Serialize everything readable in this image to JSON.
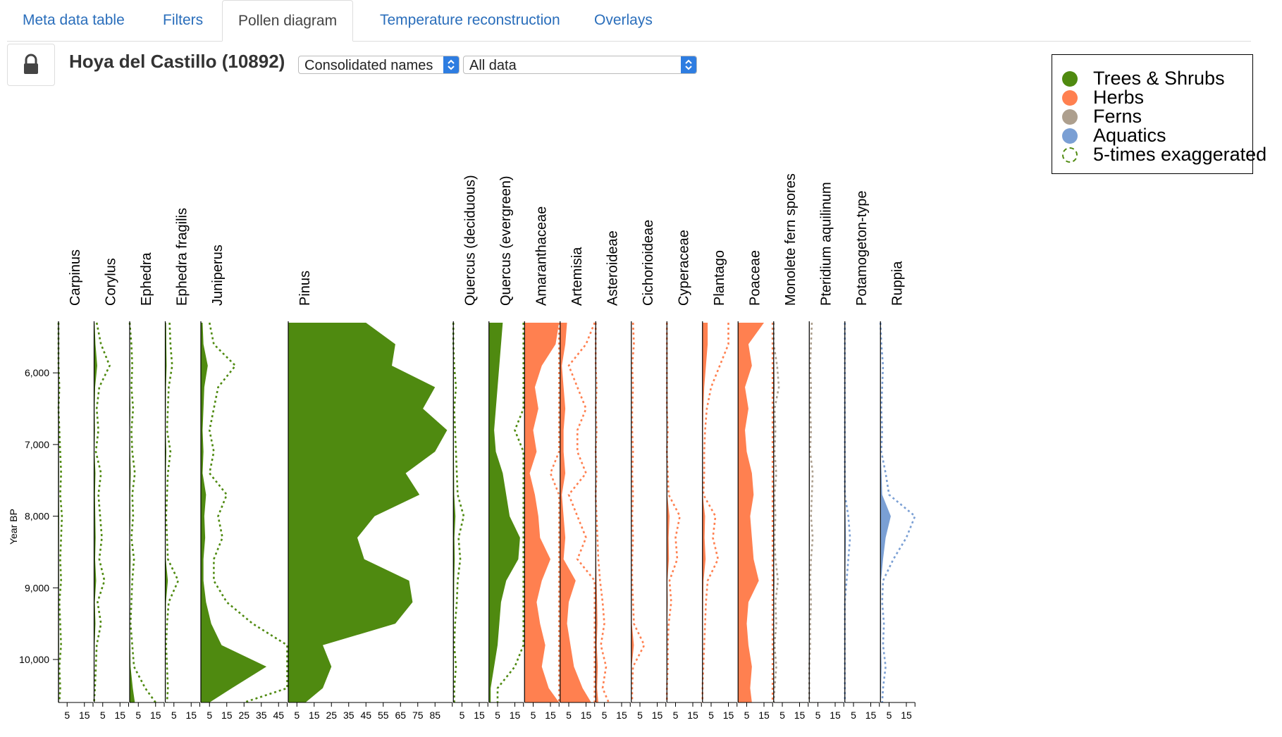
{
  "tabs": [
    {
      "label": "Meta data table",
      "active": false
    },
    {
      "label": "Filters",
      "active": false
    },
    {
      "label": "Pollen diagram",
      "active": true
    },
    {
      "label": "Temperature reconstruction",
      "active": false
    },
    {
      "label": "Overlays",
      "active": false
    }
  ],
  "toolbar": {
    "lock_icon": "lock-icon",
    "site_title": "Hoya del Castillo (10892)",
    "names_select": "Consolidated names",
    "data_select": "All data"
  },
  "legend": {
    "items": [
      {
        "label": "Trees & Shrubs",
        "color": "#4f8a10",
        "style": "filled"
      },
      {
        "label": "Herbs",
        "color": "#ff8050",
        "style": "filled"
      },
      {
        "label": "Ferns",
        "color": "#ad9f8e",
        "style": "filled"
      },
      {
        "label": "Aquatics",
        "color": "#7a9fd4",
        "style": "filled"
      },
      {
        "label": "5-times exaggerated",
        "color": "#4f8a10",
        "style": "dashed"
      }
    ]
  },
  "chart_data": {
    "type": "area",
    "ylabel": "Year BP",
    "y_range": [
      5300,
      10600
    ],
    "y_ticks": [
      6000,
      7000,
      8000,
      9000,
      10000
    ],
    "y_tick_labels": [
      "6,000",
      "7,000",
      "8,000",
      "9,000",
      "10,000"
    ],
    "age": [
      5300,
      5600,
      5900,
      6200,
      6500,
      6800,
      7100,
      7400,
      7700,
      8000,
      8300,
      8600,
      8900,
      9200,
      9500,
      9800,
      10100,
      10400,
      10600
    ],
    "exaggeration": 5,
    "colors": {
      "trees": "#4f8a10",
      "herbs": "#ff8050",
      "ferns": "#ad9f8e",
      "aquatics": "#7a9fd4"
    },
    "series": [
      {
        "name": "Carpinus",
        "group": "trees",
        "max": 20,
        "ticks": [
          5,
          15
        ],
        "exaggerated": true,
        "values": [
          0,
          0,
          0,
          0.1,
          0,
          0.1,
          0.2,
          0.3,
          0.2,
          0.4,
          0.3,
          0.2,
          0.3,
          0.1,
          0.2,
          0.3,
          0.1,
          0.2,
          0.1
        ]
      },
      {
        "name": "Corylus",
        "group": "trees",
        "max": 20,
        "ticks": [
          5,
          15
        ],
        "exaggerated": true,
        "values": [
          0.3,
          0.8,
          1.8,
          0.6,
          0.3,
          0.5,
          0.2,
          0.8,
          0.5,
          0.7,
          0.9,
          0.6,
          1.2,
          0.4,
          0.8,
          0.3,
          0.2,
          0.1,
          0
        ]
      },
      {
        "name": "Ephedra",
        "group": "trees",
        "max": 20,
        "ticks": [
          5,
          15
        ],
        "exaggerated": true,
        "values": [
          0,
          0.2,
          0.3,
          0.2,
          0.4,
          0.2,
          0.3,
          0.6,
          0.3,
          0.4,
          0.2,
          0.5,
          0.3,
          0.2,
          0.1,
          0.3,
          0.5,
          1.8,
          3
        ]
      },
      {
        "name": "Ephedra fragilis",
        "group": "trees",
        "max": 20,
        "ticks": [
          5,
          15
        ],
        "exaggerated": true,
        "values": [
          0.5,
          0.6,
          0.8,
          0.4,
          0.3,
          0.2,
          0.6,
          0.3,
          0.2,
          0.1,
          0.2,
          0.3,
          1.5,
          0.4,
          0.2,
          0.1,
          0.2,
          0.3,
          0.2
        ]
      },
      {
        "name": "Juniperus",
        "group": "trees",
        "max": 50,
        "ticks": [
          5,
          15,
          25,
          35,
          45
        ],
        "exaggerated": true,
        "values": [
          1,
          1.5,
          4,
          2,
          1.5,
          1,
          1.5,
          1,
          3,
          2,
          2.5,
          1.5,
          1.5,
          3,
          6,
          12,
          38,
          18,
          5
        ]
      },
      {
        "name": "Pinus",
        "group": "trees",
        "max": 95,
        "ticks": [
          5,
          15,
          25,
          35,
          45,
          55,
          65,
          75,
          85
        ],
        "exaggerated": false,
        "values": [
          45,
          62,
          60,
          85,
          78,
          92,
          85,
          68,
          76,
          50,
          40,
          44,
          70,
          72,
          62,
          20,
          25,
          20,
          10
        ]
      },
      {
        "name": "Quercus (deciduous)",
        "group": "trees",
        "max": 20,
        "ticks": [
          5,
          15
        ],
        "exaggerated": true,
        "values": [
          0,
          0,
          0.1,
          0.3,
          0.1,
          0.2,
          0.3,
          0.4,
          0.5,
          1.2,
          0.6,
          0.8,
          0.5,
          0.4,
          0.2,
          0.1,
          0.3,
          0.1,
          0.1
        ]
      },
      {
        "name": "Quercus (evergreen)",
        "group": "trees",
        "max": 20,
        "ticks": [
          5,
          15
        ],
        "exaggerated": true,
        "values": [
          8,
          7,
          6,
          5,
          4,
          3,
          4,
          8,
          10,
          12,
          18,
          17,
          10,
          7,
          6,
          5,
          3,
          1,
          1
        ]
      },
      {
        "name": "Amaranthaceae",
        "group": "herbs",
        "max": 20,
        "ticks": [
          5,
          15
        ],
        "exaggerated": true,
        "values": [
          20,
          18,
          10,
          6,
          8,
          5,
          7,
          3,
          6,
          8,
          9,
          15,
          10,
          7,
          9,
          12,
          10,
          14,
          22
        ]
      },
      {
        "name": "Artemisia",
        "group": "herbs",
        "max": 20,
        "ticks": [
          5,
          15
        ],
        "exaggerated": true,
        "values": [
          4,
          3,
          1,
          2,
          3,
          2,
          2,
          3,
          1,
          2,
          3,
          2,
          9,
          5,
          4,
          6,
          8,
          13,
          18
        ]
      },
      {
        "name": "Asteroideae",
        "group": "herbs",
        "max": 20,
        "ticks": [
          5,
          15
        ],
        "exaggerated": true,
        "values": [
          0,
          0,
          0,
          0.1,
          0,
          0.1,
          0,
          0.1,
          0,
          0.1,
          0.2,
          0.3,
          0.5,
          0.8,
          1,
          0.6,
          1.2,
          0.8,
          1.5
        ]
      },
      {
        "name": "Cichorioideae",
        "group": "herbs",
        "max": 20,
        "ticks": [
          5,
          15
        ],
        "exaggerated": true,
        "values": [
          0.2,
          0.3,
          0.1,
          0.2,
          0.1,
          0.1,
          0.2,
          0.1,
          0.2,
          0.1,
          0.2,
          0.1,
          0.1,
          0.2,
          0.3,
          1.5,
          0.2,
          0.1,
          0.1
        ]
      },
      {
        "name": "Cyperaceae",
        "group": "herbs",
        "max": 20,
        "ticks": [
          5,
          15
        ],
        "exaggerated": true,
        "values": [
          0,
          0,
          0,
          0,
          0,
          0.1,
          0,
          0.1,
          0.2,
          1.5,
          1,
          1.2,
          0.3,
          0.5,
          0.2,
          0.1,
          0.1,
          0,
          0
        ]
      },
      {
        "name": "Plantago",
        "group": "herbs",
        "max": 20,
        "ticks": [
          5,
          15
        ],
        "exaggerated": true,
        "values": [
          3,
          3,
          2,
          1,
          0.5,
          0.3,
          0.2,
          0.2,
          0.1,
          1.5,
          1.2,
          1.8,
          0.6,
          0.4,
          0.3,
          0.2,
          0.1,
          0,
          0
        ]
      },
      {
        "name": "Poaceae",
        "group": "herbs",
        "max": 20,
        "ticks": [
          5,
          15
        ],
        "exaggerated": true,
        "values": [
          15,
          6,
          8,
          4,
          6,
          4,
          5,
          8,
          9,
          7,
          8,
          9,
          12,
          6,
          5,
          6,
          8,
          7,
          8
        ]
      },
      {
        "name": "Monolete fern spores",
        "group": "ferns",
        "max": 20,
        "ticks": [
          5,
          15
        ],
        "exaggerated": true,
        "values": [
          0,
          0,
          0.4,
          0.6,
          0.1,
          0.2,
          0.1,
          0.3,
          0.1,
          0.2,
          0.1,
          0.2,
          0.5,
          0.2,
          0.3,
          0.1,
          0.3,
          0.1,
          0
        ]
      },
      {
        "name": "Pteridium aquilinum",
        "group": "ferns",
        "max": 20,
        "ticks": [
          5,
          15
        ],
        "exaggerated": true,
        "values": [
          0.3,
          0.2,
          0.1,
          0.2,
          0.1,
          0.2,
          0.1,
          0.4,
          0.3,
          0.2,
          0.4,
          0.2,
          0.1,
          0.2,
          0.1,
          0.1,
          0,
          0,
          0
        ]
      },
      {
        "name": "Potamogeton-type",
        "group": "aquatics",
        "max": 20,
        "ticks": [
          5,
          15
        ],
        "exaggerated": true,
        "values": [
          0,
          0,
          0,
          0,
          0,
          0,
          0,
          0,
          0,
          0.4,
          0.6,
          0.4,
          0.2,
          0,
          0,
          0,
          0,
          0,
          0
        ]
      },
      {
        "name": "Ruppia",
        "group": "aquatics",
        "max": 20,
        "ticks": [
          5,
          15
        ],
        "exaggerated": true,
        "values": [
          0,
          0.1,
          0.3,
          0.2,
          0.1,
          0.2,
          0.1,
          0.6,
          1,
          6,
          3,
          1.5,
          0.3,
          0.2,
          0.4,
          0.3,
          0.6,
          0.3,
          0.2
        ]
      }
    ]
  }
}
